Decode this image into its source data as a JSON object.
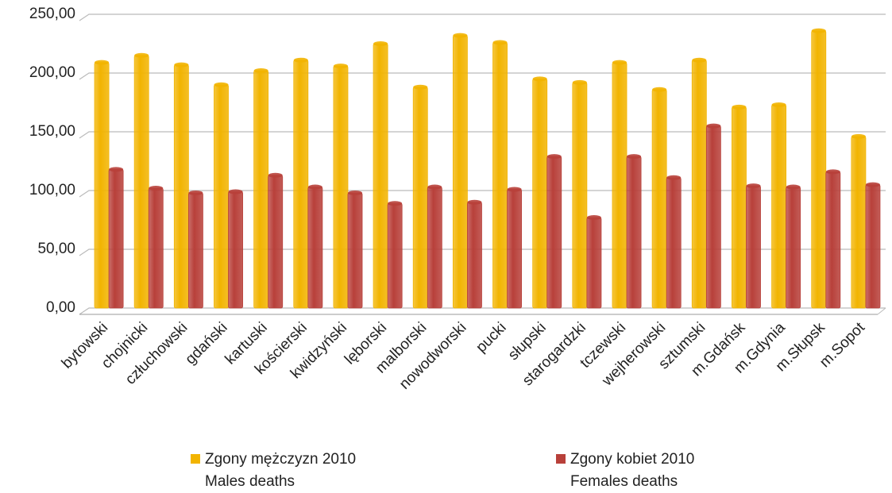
{
  "chart_data": {
    "type": "bar",
    "categories": [
      "bytowski",
      "chojnicki",
      "człuchowski",
      "gdański",
      "kartuski",
      "kościerski",
      "kwidzyński",
      "lęborski",
      "malborski",
      "nowodworski",
      "pucki",
      "słupski",
      "starogardzki",
      "tczewski",
      "wejherowski",
      "sztumski",
      "m.Gdańsk",
      "m.Gdynia",
      "m.Słupsk",
      "m.Sopot"
    ],
    "series": [
      {
        "name": "Zgony mężczyzn 2010",
        "subtitle": "Males deaths",
        "color": "#f2b400",
        "values": [
          209,
          215,
          207,
          190,
          202,
          211,
          206,
          225,
          188,
          232,
          226,
          195,
          192,
          209,
          186,
          211,
          171,
          173,
          236,
          146
        ]
      },
      {
        "name": "Zgony kobiet 2010",
        "subtitle": "Females deaths",
        "color": "#b8403a",
        "values": [
          118,
          102,
          98,
          99,
          113,
          103,
          98,
          89,
          103,
          90,
          101,
          129,
          77,
          129,
          111,
          155,
          104,
          103,
          116,
          105
        ]
      }
    ],
    "ylim": [
      0,
      250
    ],
    "yticks": [
      {
        "value": 0,
        "label": "0,00"
      },
      {
        "value": 50,
        "label": "50,00"
      },
      {
        "value": 100,
        "label": "100,00"
      },
      {
        "value": 150,
        "label": "150,00"
      },
      {
        "value": 200,
        "label": "200,00"
      },
      {
        "value": 250,
        "label": "250,00"
      }
    ],
    "grid": true,
    "legend": "bottom"
  }
}
